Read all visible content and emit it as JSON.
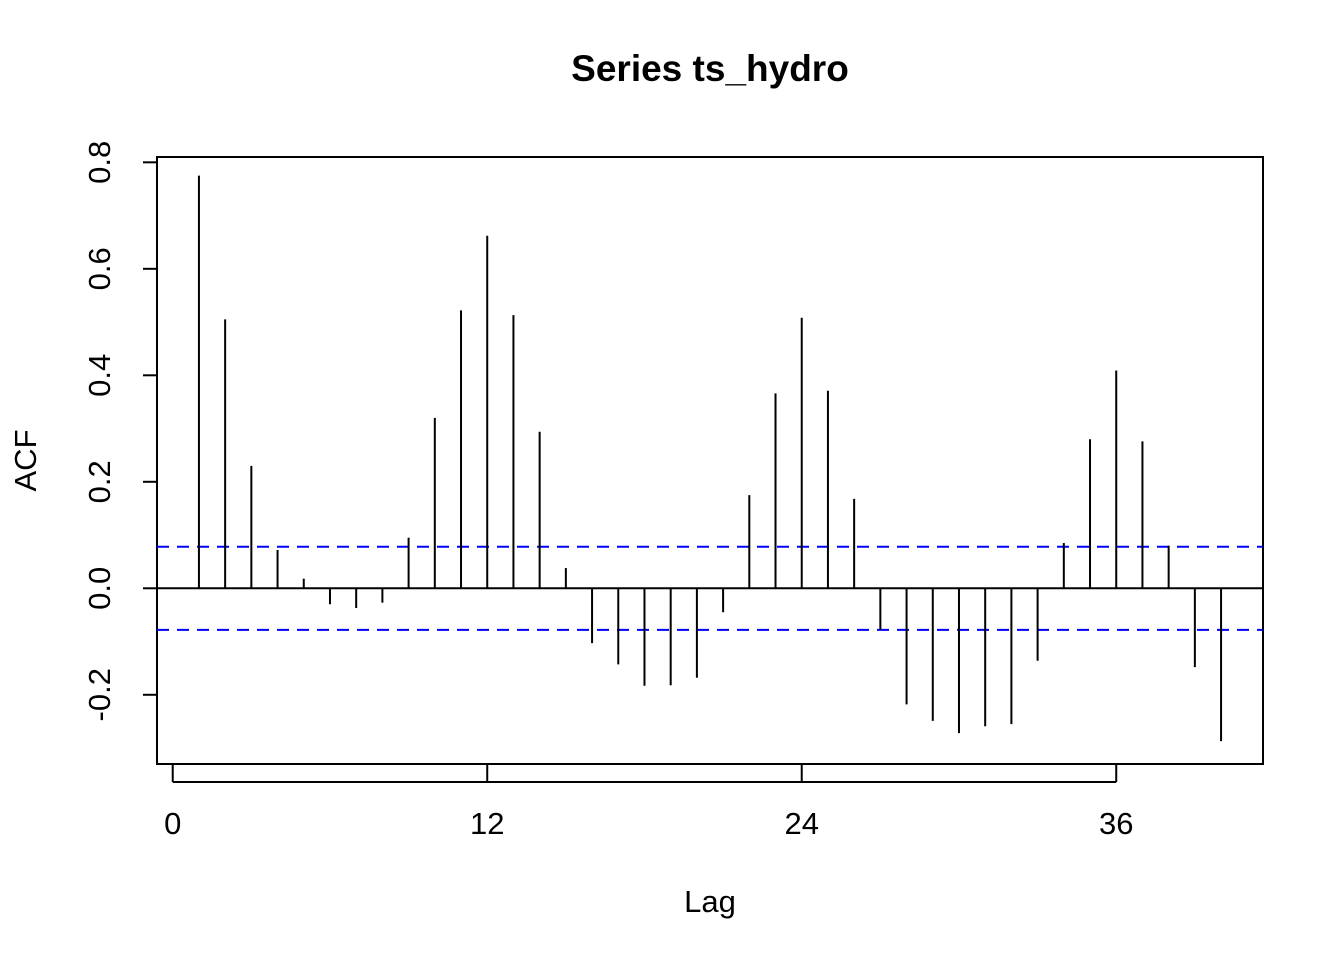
{
  "chart_data": {
    "type": "bar",
    "title": "Series  ts_hydro",
    "xlabel": "Lag",
    "ylabel": "ACF",
    "xlim": [
      -0.6,
      41.6
    ],
    "ylim": [
      -0.33,
      0.81
    ],
    "x_ticks": [
      0,
      12,
      24,
      36
    ],
    "x_tick_labels": [
      "0",
      "12",
      "24",
      "36"
    ],
    "y_ticks": [
      -0.2,
      0.0,
      0.2,
      0.4,
      0.6,
      0.8
    ],
    "y_tick_labels": [
      "-0.2",
      "0.0",
      "0.2",
      "0.4",
      "0.6",
      "0.8"
    ],
    "confidence_bound": 0.078,
    "colors": {
      "bars": "#000000",
      "zero_line": "#000000",
      "confidence": "#0000ff",
      "frame": "#000000"
    },
    "lags": [
      1,
      2,
      3,
      4,
      5,
      6,
      7,
      8,
      9,
      10,
      11,
      12,
      13,
      14,
      15,
      16,
      17,
      18,
      19,
      20,
      21,
      22,
      23,
      24,
      25,
      26,
      27,
      28,
      29,
      30,
      31,
      32,
      33,
      34,
      35,
      36,
      37,
      38,
      39,
      40
    ],
    "values": [
      0.775,
      0.505,
      0.23,
      0.072,
      0.018,
      -0.03,
      -0.037,
      -0.027,
      0.095,
      0.32,
      0.522,
      0.662,
      0.513,
      0.294,
      0.038,
      -0.103,
      -0.143,
      -0.183,
      -0.182,
      -0.168,
      -0.045,
      0.175,
      0.366,
      0.508,
      0.371,
      0.168,
      -0.078,
      -0.218,
      -0.249,
      -0.272,
      -0.259,
      -0.255,
      -0.136,
      0.085,
      0.28,
      0.409,
      0.276,
      0.08,
      -0.148,
      -0.287
    ]
  }
}
